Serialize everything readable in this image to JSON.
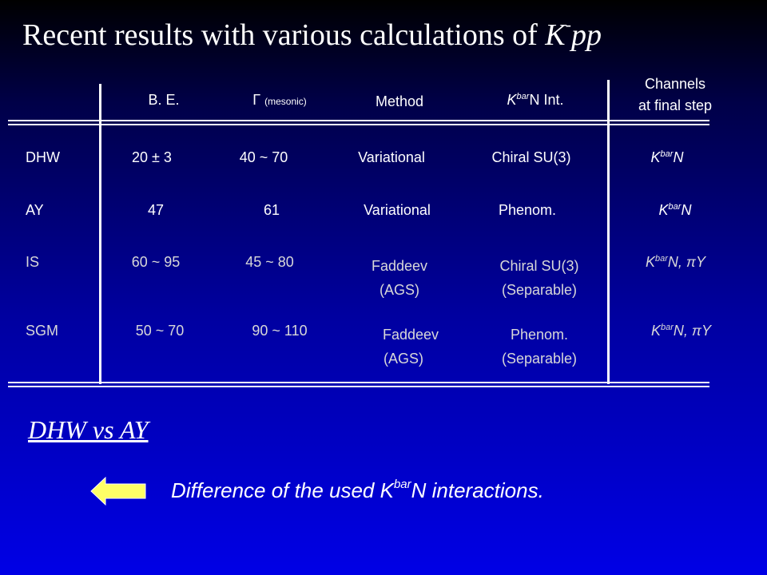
{
  "title": {
    "text": "Recent results with various calculations of",
    "k": "K",
    "sup": "-",
    "pp": "pp"
  },
  "headers": {
    "be": "B. E.",
    "gamma": "Γ",
    "gamma_sub": "(mesonic)",
    "method": "Method",
    "kbarn_k": "K",
    "kbarn_sup": "bar",
    "kbarn_rest": "N Int.",
    "channels1": "Channels",
    "channels2": "at final step"
  },
  "rows": [
    {
      "name": "DHW",
      "be": "20 ± 3",
      "gamma": "40  ~  70",
      "method": "Variational",
      "method2": "",
      "int": "Chiral SU(3)",
      "int2": "",
      "ch_k": "K",
      "ch_sup": "bar",
      "ch_rest": "N"
    },
    {
      "name": "AY",
      "be": "47",
      "gamma": "61",
      "method": "Variational",
      "method2": "",
      "int": "Phenom.",
      "int2": "",
      "ch_k": "K",
      "ch_sup": "bar",
      "ch_rest": "N"
    },
    {
      "name": "IS",
      "be": "60  ~  95",
      "gamma": "45  ~  80",
      "method": "Faddeev",
      "method2": "(AGS)",
      "int": "Chiral SU(3)",
      "int2": "(Separable)",
      "ch_k": "K",
      "ch_sup": "bar",
      "ch_rest": "N, πY"
    },
    {
      "name": "SGM",
      "be": "50 ~ 70",
      "gamma": "90  ~  110",
      "method": "Faddeev",
      "method2": "(AGS)",
      "int": "Phenom.",
      "int2": "(Separable)",
      "ch_k": "K",
      "ch_sup": "bar",
      "ch_rest": "N, πY"
    }
  ],
  "comparison": {
    "heading": "DHW vs AY",
    "text_pre": "Difference  of the used K",
    "text_sup": "bar",
    "text_post": "N interactions."
  },
  "colors": {
    "bright_text": "#ffffff",
    "dim_text": "#d8d8d8",
    "arrow_fill": "#ffff66"
  }
}
